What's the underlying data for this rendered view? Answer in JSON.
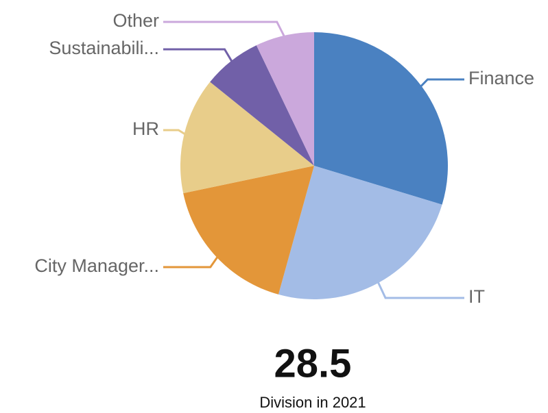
{
  "chart_data": {
    "type": "pie",
    "categories": [
      "Finance",
      "IT",
      "City Manager...",
      "HR",
      "Sustainabili...",
      "Other"
    ],
    "values": [
      29.7,
      24.6,
      17.4,
      14.1,
      7.1,
      7.1
    ],
    "colors": [
      "#4a81c1",
      "#a3bce6",
      "#e39639",
      "#e8cd8a",
      "#7160a8",
      "#cba8dc"
    ]
  },
  "kpi": {
    "value": "28.5",
    "label": "Division in 2021"
  }
}
